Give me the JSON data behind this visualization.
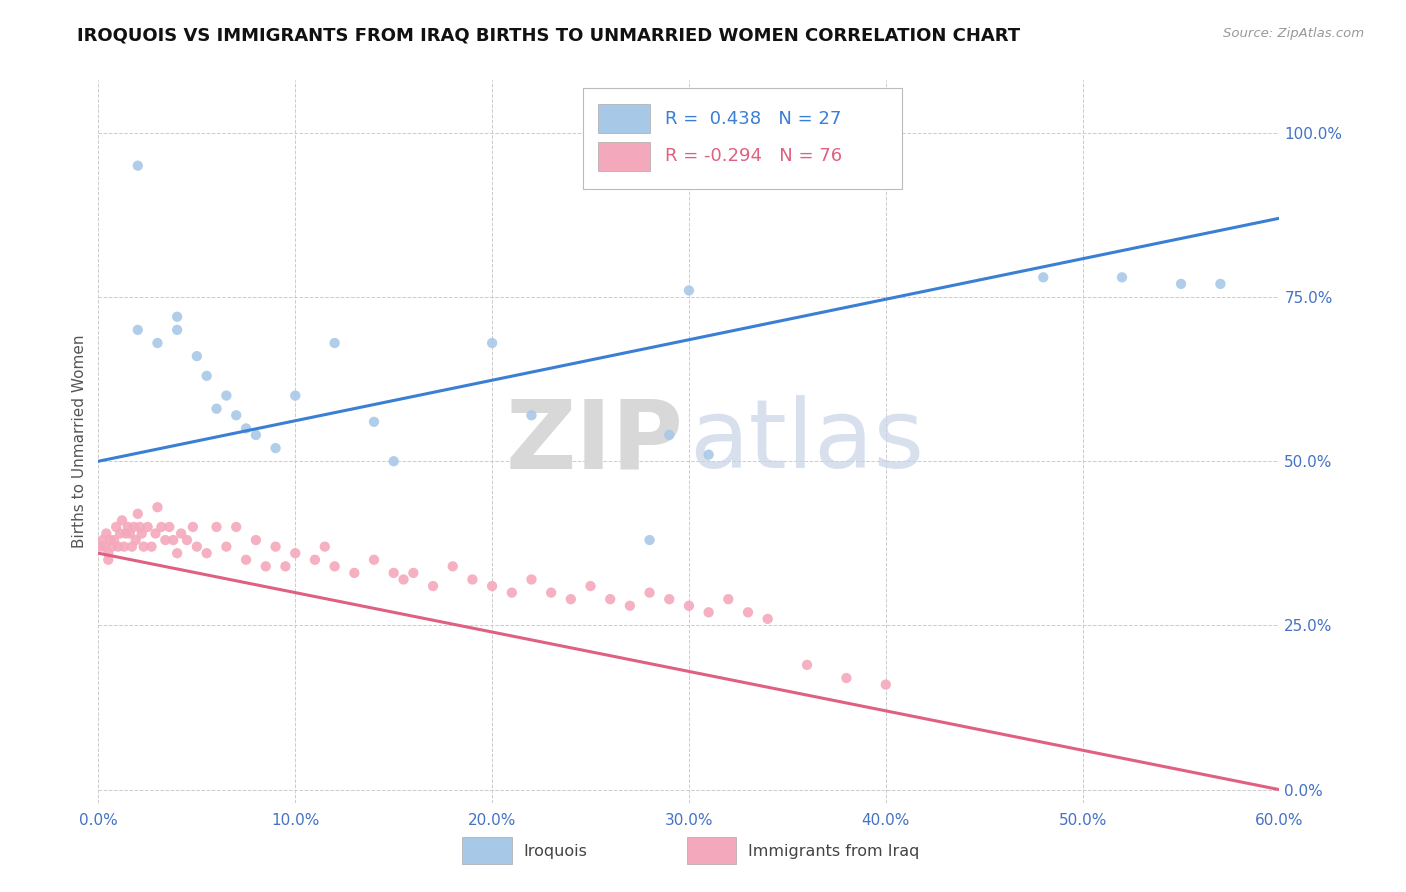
{
  "title": "IROQUOIS VS IMMIGRANTS FROM IRAQ BIRTHS TO UNMARRIED WOMEN CORRELATION CHART",
  "source": "Source: ZipAtlas.com",
  "ylabel": "Births to Unmarried Women",
  "xlim": [
    0.0,
    0.6
  ],
  "ylim": [
    -0.02,
    1.08
  ],
  "xticks": [
    0.0,
    0.1,
    0.2,
    0.3,
    0.4,
    0.5,
    0.6
  ],
  "xticklabels": [
    "0.0%",
    "10.0%",
    "20.0%",
    "30.0%",
    "40.0%",
    "50.0%",
    "60.0%"
  ],
  "yticks": [
    0.0,
    0.25,
    0.5,
    0.75,
    1.0
  ],
  "yticklabels": [
    "0.0%",
    "25.0%",
    "50.0%",
    "75.0%",
    "100.0%"
  ],
  "iroquois_color": "#a8c8e8",
  "iraq_color": "#f4a8bc",
  "trend_iroquois_color": "#3a7fd4",
  "trend_iraq_color": "#e06080",
  "legend_R_iroquois": "R =  0.438",
  "legend_N_iroquois": "N = 27",
  "legend_R_iraq": "R = -0.294",
  "legend_N_iraq": "N = 76",
  "background_color": "#ffffff",
  "iroquois_x": [
    0.02,
    0.02,
    0.03,
    0.04,
    0.04,
    0.05,
    0.055,
    0.06,
    0.065,
    0.07,
    0.075,
    0.08,
    0.09,
    0.1,
    0.12,
    0.14,
    0.15,
    0.2,
    0.22,
    0.28,
    0.29,
    0.3,
    0.31,
    0.48,
    0.52,
    0.55,
    0.57
  ],
  "iroquois_y": [
    0.95,
    0.7,
    0.68,
    0.72,
    0.7,
    0.66,
    0.63,
    0.58,
    0.6,
    0.57,
    0.55,
    0.54,
    0.52,
    0.6,
    0.68,
    0.56,
    0.5,
    0.68,
    0.57,
    0.38,
    0.54,
    0.76,
    0.51,
    0.78,
    0.78,
    0.77,
    0.77
  ],
  "iraq_x": [
    0.001,
    0.002,
    0.003,
    0.004,
    0.005,
    0.005,
    0.006,
    0.007,
    0.008,
    0.009,
    0.01,
    0.011,
    0.012,
    0.013,
    0.014,
    0.015,
    0.016,
    0.017,
    0.018,
    0.019,
    0.02,
    0.021,
    0.022,
    0.023,
    0.025,
    0.027,
    0.029,
    0.03,
    0.032,
    0.034,
    0.036,
    0.038,
    0.04,
    0.042,
    0.045,
    0.048,
    0.05,
    0.055,
    0.06,
    0.065,
    0.07,
    0.075,
    0.08,
    0.085,
    0.09,
    0.095,
    0.1,
    0.11,
    0.115,
    0.12,
    0.13,
    0.14,
    0.15,
    0.155,
    0.16,
    0.17,
    0.18,
    0.19,
    0.2,
    0.21,
    0.22,
    0.23,
    0.24,
    0.25,
    0.26,
    0.27,
    0.28,
    0.29,
    0.3,
    0.31,
    0.32,
    0.33,
    0.34,
    0.36,
    0.38,
    0.4
  ],
  "iraq_y": [
    0.37,
    0.38,
    0.37,
    0.39,
    0.36,
    0.35,
    0.38,
    0.37,
    0.38,
    0.4,
    0.37,
    0.39,
    0.41,
    0.37,
    0.39,
    0.4,
    0.39,
    0.37,
    0.4,
    0.38,
    0.42,
    0.4,
    0.39,
    0.37,
    0.4,
    0.37,
    0.39,
    0.43,
    0.4,
    0.38,
    0.4,
    0.38,
    0.36,
    0.39,
    0.38,
    0.4,
    0.37,
    0.36,
    0.4,
    0.37,
    0.4,
    0.35,
    0.38,
    0.34,
    0.37,
    0.34,
    0.36,
    0.35,
    0.37,
    0.34,
    0.33,
    0.35,
    0.33,
    0.32,
    0.33,
    0.31,
    0.34,
    0.32,
    0.31,
    0.3,
    0.32,
    0.3,
    0.29,
    0.31,
    0.29,
    0.28,
    0.3,
    0.29,
    0.28,
    0.27,
    0.29,
    0.27,
    0.26,
    0.19,
    0.17,
    0.16
  ]
}
